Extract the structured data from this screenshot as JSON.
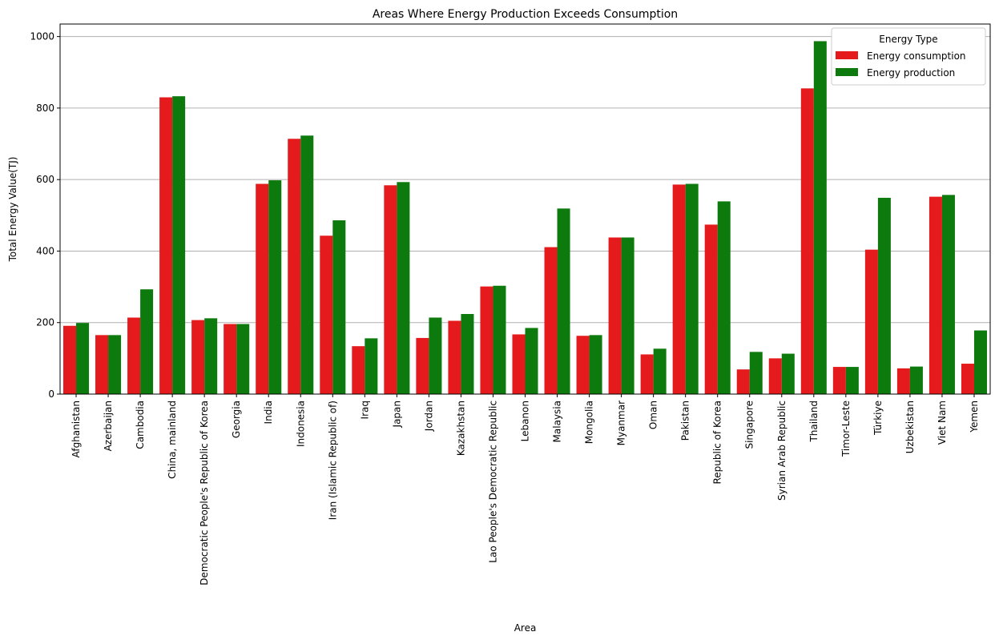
{
  "chart_data": {
    "type": "bar",
    "title": "Areas Where Energy Production Exceeds Consumption",
    "xlabel": "Area",
    "ylabel": "Total Energy Value(TJ)",
    "ylim": [
      0,
      1035
    ],
    "yticks": [
      0,
      200,
      400,
      600,
      800,
      1000
    ],
    "grid": "horizontal",
    "legend_title": "Energy Type",
    "legend_position": "top-right",
    "categories": [
      "Afghanistan",
      "Azerbaijan",
      "Cambodia",
      "China, mainland",
      "Democratic People's Republic of Korea",
      "Georgia",
      "India",
      "Indonesia",
      "Iran (Islamic Republic of)",
      "Iraq",
      "Japan",
      "Jordan",
      "Kazakhstan",
      "Lao People's Democratic Republic",
      "Lebanon",
      "Malaysia",
      "Mongolia",
      "Myanmar",
      "Oman",
      "Pakistan",
      "Republic of Korea",
      "Singapore",
      "Syrian Arab Republic",
      "Thailand",
      "Timor-Leste",
      "Türkiye",
      "Uzbekistan",
      "Viet Nam",
      "Yemen"
    ],
    "series": [
      {
        "name": "Energy consumption",
        "color": "#e41a1c",
        "values": [
          191,
          165,
          214,
          830,
          207,
          196,
          588,
          714,
          443,
          134,
          584,
          157,
          205,
          301,
          167,
          411,
          163,
          438,
          111,
          586,
          474,
          69,
          100,
          855,
          76,
          404,
          72,
          552,
          85
        ]
      },
      {
        "name": "Energy production",
        "color": "#0d7a0d",
        "values": [
          199,
          165,
          293,
          833,
          212,
          196,
          598,
          723,
          486,
          156,
          593,
          214,
          224,
          303,
          185,
          519,
          165,
          438,
          127,
          588,
          539,
          118,
          113,
          987,
          76,
          549,
          77,
          557,
          178
        ]
      }
    ]
  }
}
